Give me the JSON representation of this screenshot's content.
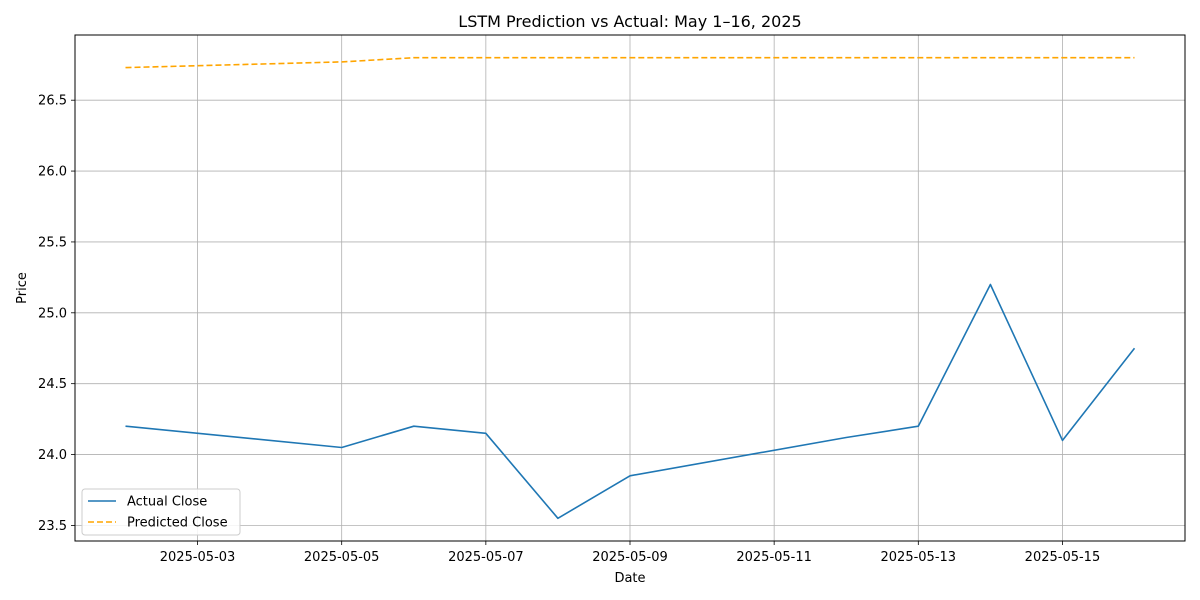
{
  "chart_data": {
    "type": "line",
    "title": "LSTM Prediction vs Actual: May 1–16, 2025",
    "xlabel": "Date",
    "ylabel": "Price",
    "x": [
      "2025-05-02",
      "2025-05-05",
      "2025-05-06",
      "2025-05-07",
      "2025-05-08",
      "2025-05-09",
      "2025-05-12",
      "2025-05-13",
      "2025-05-14",
      "2025-05-15",
      "2025-05-16"
    ],
    "series": [
      {
        "name": "Actual Close",
        "color": "#1f77b4",
        "style": "solid",
        "values": [
          24.2,
          24.05,
          24.2,
          24.15,
          23.55,
          23.85,
          24.12,
          24.2,
          25.2,
          24.1,
          24.75
        ]
      },
      {
        "name": "Predicted Close",
        "color": "#ffa500",
        "style": "dashed",
        "values": [
          26.73,
          26.77,
          26.8,
          26.8,
          26.8,
          26.8,
          26.8,
          26.8,
          26.8,
          26.8,
          26.8
        ]
      }
    ],
    "xlim": [
      "2025-05-01 07:12",
      "2025-05-16 16:48"
    ],
    "ylim": [
      23.39,
      26.96
    ],
    "xticks": [
      "2025-05-03",
      "2025-05-05",
      "2025-05-07",
      "2025-05-09",
      "2025-05-11",
      "2025-05-13",
      "2025-05-15"
    ],
    "yticks": [
      23.5,
      24.0,
      24.5,
      25.0,
      25.5,
      26.0,
      26.5
    ],
    "grid": true,
    "legend_position": "lower-left"
  }
}
